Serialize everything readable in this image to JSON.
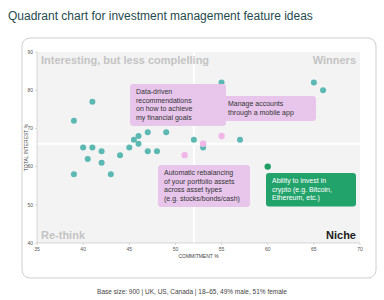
{
  "chart_data": {
    "type": "scatter",
    "title": "Quadrant chart for investment management feature ideas",
    "x_label": "COMMITMENT %",
    "y_label": "TOTAL INTEREST %",
    "footer": "Base size: 900 | UK, US, Canada | 18–65, 49% male, 51% female",
    "xlim": [
      35,
      70
    ],
    "xticks": [
      35,
      40,
      45,
      50,
      55,
      60,
      65,
      70
    ],
    "ylim": [
      40,
      90
    ],
    "yticks": [
      40,
      50,
      60,
      70,
      80,
      90
    ],
    "grid": false,
    "color": "#5cb8b2",
    "marker": "circle",
    "x": [
      39,
      41,
      40,
      41,
      40.5,
      42,
      42,
      39,
      43,
      44,
      45,
      45.5,
      46,
      46,
      47,
      48,
      47,
      49,
      48,
      50,
      52,
      53,
      55,
      57,
      65,
      66
    ],
    "values": [
      72,
      77,
      65,
      65,
      62,
      64,
      61,
      58,
      58,
      63,
      65,
      67,
      68,
      66,
      64,
      64,
      69,
      69,
      72,
      74,
      67,
      65,
      82,
      67,
      82,
      80
    ],
    "x_divider": 52,
    "y_divider": 66,
    "quadrant_labels": {
      "top_left": "Interesting, but less complelling",
      "top_right": "Winners",
      "bottom_left": "Re-think",
      "bottom_right": "Niche"
    },
    "annotations": [
      {
        "text": [
          "Data-driven",
          "recommendations",
          "on how to achieve",
          "my financial goals"
        ],
        "x": 53,
        "y": 66,
        "color": "#e8c6ec"
      },
      {
        "text": [
          "Manage accounts",
          "through a mobile app"
        ],
        "x": 55,
        "y": 68,
        "color": "#e8c6ec"
      },
      {
        "text": [
          "Automatic rebalancing",
          "of your portfolio assets",
          "across asset types",
          "(e.g. stocks/bonds/cash)"
        ],
        "x": 51,
        "y": 63,
        "color": "#e8c6ec"
      },
      {
        "text": [
          "Ability to invest in",
          "crypto (e.g. Bitcoin,",
          "Ethereum, etc.)"
        ],
        "x": 60,
        "y": 60,
        "color": "#23a36c"
      }
    ]
  }
}
